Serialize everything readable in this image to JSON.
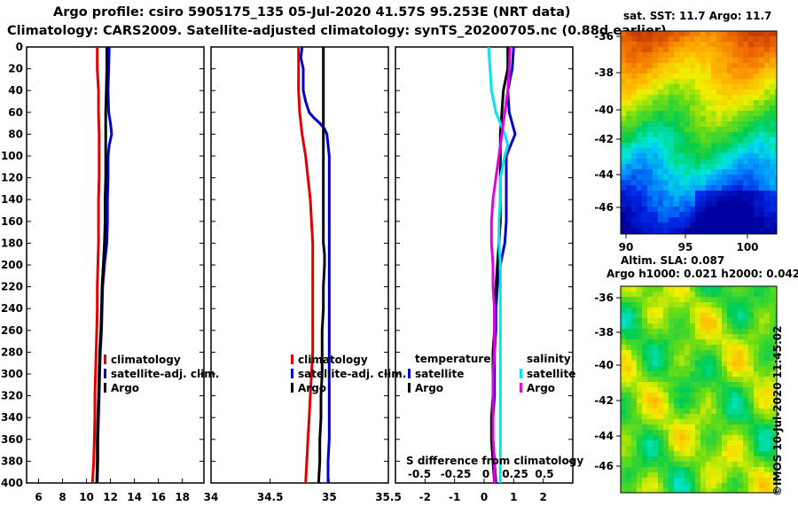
{
  "header": {
    "line1": "Argo profile: csiro 5905175_135 05-Jul-2020 41.57S 95.253E (NRT data)",
    "line2": "Climatology: CARS2009. Satellite-adjusted climatology: synTS_20200705.nc (0.88d earlier)"
  },
  "depth_ticks": [
    "0",
    "20",
    "40",
    "60",
    "80",
    "100",
    "120",
    "140",
    "160",
    "180",
    "200",
    "220",
    "240",
    "260",
    "280",
    "300",
    "320",
    "340",
    "360",
    "380",
    "400"
  ],
  "colors": {
    "climatology": "#e00000",
    "satellite": "#0000cc",
    "argo": "#000000",
    "satellite_salinity": "#00e5ee",
    "argo_salinity": "#e000e0"
  },
  "chart_data": [
    {
      "id": "temperature",
      "type": "line",
      "xlabel_ticks": [
        "6",
        "8",
        "10",
        "12",
        "14",
        "16",
        "18"
      ],
      "xlim": [
        5.0,
        19.8
      ],
      "ylim": [
        400,
        0
      ],
      "series": [
        {
          "name": "climatology",
          "depth": [
            0,
            20,
            40,
            60,
            80,
            100,
            120,
            140,
            160,
            180,
            200,
            220,
            240,
            260,
            280,
            300,
            320,
            340,
            360,
            380,
            400
          ],
          "values": [
            10.9,
            10.9,
            11.0,
            11.0,
            11.05,
            11.05,
            11.05,
            11.0,
            11.0,
            11.0,
            10.95,
            10.9,
            10.9,
            10.85,
            10.8,
            10.75,
            10.7,
            10.7,
            10.65,
            10.6,
            10.5
          ]
        },
        {
          "name": "satellite-adj. clim.",
          "depth": [
            0,
            20,
            40,
            60,
            70,
            80,
            90,
            100,
            120,
            140,
            160,
            180,
            200,
            220,
            240,
            260,
            280,
            300,
            320,
            340,
            360,
            380,
            400
          ],
          "values": [
            11.9,
            11.85,
            11.8,
            11.85,
            12.0,
            12.1,
            11.9,
            11.8,
            11.8,
            11.75,
            11.75,
            11.7,
            11.5,
            11.35,
            11.3,
            11.25,
            11.15,
            11.1,
            11.05,
            11.0,
            10.95,
            10.95,
            10.9
          ]
        },
        {
          "name": "Argo",
          "depth": [
            0,
            20,
            40,
            60,
            80,
            100,
            120,
            140,
            160,
            180,
            200,
            220,
            240,
            260,
            280,
            300,
            320,
            340,
            360,
            380,
            400
          ],
          "values": [
            11.7,
            11.7,
            11.65,
            11.6,
            11.6,
            11.6,
            11.6,
            11.55,
            11.55,
            11.5,
            11.4,
            11.3,
            11.25,
            11.2,
            11.1,
            11.05,
            11.0,
            10.95,
            10.9,
            10.9,
            10.85
          ]
        }
      ],
      "legend": [
        "climatology",
        "satellite-adj. clim.",
        "Argo"
      ]
    },
    {
      "id": "salinity",
      "type": "line",
      "xlabel_ticks": [
        "34",
        "34.5",
        "35",
        "35.5"
      ],
      "xlim": [
        34.0,
        35.5
      ],
      "ylim": [
        400,
        0
      ],
      "series": [
        {
          "name": "climatology",
          "depth": [
            0,
            20,
            40,
            60,
            80,
            100,
            120,
            140,
            160,
            180,
            200,
            220,
            240,
            260,
            280,
            300,
            320,
            340,
            360,
            380,
            400
          ],
          "values": [
            34.74,
            34.74,
            34.74,
            34.75,
            34.77,
            34.8,
            34.82,
            34.84,
            34.85,
            34.86,
            34.86,
            34.86,
            34.86,
            34.86,
            34.86,
            34.85,
            34.84,
            34.83,
            34.82,
            34.81,
            34.8
          ]
        },
        {
          "name": "satellite-adj. clim.",
          "depth": [
            0,
            10,
            20,
            40,
            50,
            60,
            65,
            70,
            75,
            80,
            90,
            100,
            120,
            140,
            160,
            180,
            200,
            220,
            240,
            260,
            280,
            300,
            320,
            340,
            360,
            380,
            400
          ],
          "values": [
            34.77,
            34.76,
            34.78,
            34.78,
            34.8,
            34.83,
            34.87,
            34.92,
            34.96,
            34.98,
            34.99,
            35.0,
            35.0,
            35.0,
            35.0,
            35.0,
            35.0,
            35.0,
            35.0,
            35.0,
            35.0,
            35.0,
            35.0,
            35.0,
            35.0,
            34.99,
            34.99
          ]
        },
        {
          "name": "Argo",
          "depth": [
            0,
            40,
            80,
            120,
            160,
            180,
            190,
            200,
            220,
            240,
            260,
            280,
            300,
            320,
            340,
            360,
            380,
            400
          ],
          "values": [
            34.95,
            34.95,
            34.95,
            34.95,
            34.95,
            34.95,
            34.96,
            34.96,
            34.95,
            34.95,
            34.94,
            34.94,
            34.94,
            34.93,
            34.93,
            34.92,
            34.92,
            34.91
          ]
        }
      ],
      "legend": [
        "climatology",
        "satellite-adj. clim.",
        "Argo"
      ]
    },
    {
      "id": "difference",
      "type": "line",
      "xlabel_ticks": [
        "-2",
        "-1",
        "0",
        "1",
        "2"
      ],
      "s_ticks": [
        "-0.5",
        "-0.25",
        "0",
        "0.25",
        "0.5"
      ],
      "xlim": [
        -3.0,
        3.0
      ],
      "ylim": [
        400,
        0
      ],
      "annotation": "S difference from climatology",
      "legend_temperature_title": "temperature",
      "legend_salinity_title": "salinity",
      "legend_items": {
        "satellite": "satellite",
        "argo": "Argo"
      },
      "series": [
        {
          "name": "temperature satellite",
          "depth": [
            0,
            20,
            40,
            60,
            80,
            100,
            120,
            140,
            160,
            180,
            200,
            220,
            240,
            260,
            280,
            300,
            320,
            340,
            360,
            380,
            400
          ],
          "values": [
            1.0,
            0.95,
            0.8,
            0.85,
            1.05,
            0.75,
            0.75,
            0.75,
            0.75,
            0.7,
            0.55,
            0.45,
            0.4,
            0.4,
            0.35,
            0.35,
            0.35,
            0.3,
            0.3,
            0.35,
            0.4
          ]
        },
        {
          "name": "temperature Argo",
          "depth": [
            0,
            20,
            40,
            60,
            80,
            100,
            120,
            140,
            160,
            180,
            200,
            220,
            240,
            260,
            280,
            300,
            320,
            340,
            360,
            380,
            400
          ],
          "values": [
            0.8,
            0.8,
            0.65,
            0.6,
            0.55,
            0.55,
            0.55,
            0.55,
            0.55,
            0.5,
            0.45,
            0.4,
            0.35,
            0.35,
            0.3,
            0.3,
            0.3,
            0.25,
            0.25,
            0.3,
            0.35
          ]
        },
        {
          "name": "salinity satellite",
          "depth": [
            0,
            20,
            40,
            60,
            80,
            90,
            100,
            120,
            140,
            160,
            180,
            200,
            220,
            240,
            260,
            280,
            300,
            320,
            340,
            360,
            380,
            400
          ],
          "values": [
            0.15,
            0.2,
            0.25,
            0.4,
            0.7,
            0.8,
            0.7,
            0.55,
            0.55,
            0.5,
            0.5,
            0.55,
            0.55,
            0.55,
            0.55,
            0.55,
            0.55,
            0.55,
            0.55,
            0.55,
            0.55,
            0.55
          ]
        },
        {
          "name": "salinity Argo",
          "depth": [
            0,
            20,
            40,
            60,
            80,
            100,
            120,
            140,
            160,
            180,
            200,
            220,
            240,
            260,
            280,
            300,
            320,
            340,
            360,
            380,
            400
          ],
          "values": [
            0.88,
            0.85,
            0.8,
            0.7,
            0.6,
            0.5,
            0.4,
            0.3,
            0.25,
            0.25,
            0.3,
            0.3,
            0.35,
            0.35,
            0.35,
            0.3,
            0.3,
            0.3,
            0.3,
            0.35,
            0.35
          ]
        }
      ]
    }
  ],
  "maps": {
    "sst": {
      "title": "sat. SST: 11.7 Argo: 11.7",
      "lat_ticks": [
        "-36",
        "-38",
        "-40",
        "-42",
        "-44",
        "-46"
      ],
      "lon_ticks": [
        "90",
        "95",
        "100"
      ]
    },
    "sla": {
      "title1": "Altim. SLA: 0.087",
      "title2": "Argo h1000: 0.021 h2000: 0.042",
      "lat_ticks": [
        "-36",
        "-38",
        "-40",
        "-42",
        "-44",
        "-46"
      ]
    }
  },
  "footer": "©IMOS 10-Jul-2020 11:45:02"
}
